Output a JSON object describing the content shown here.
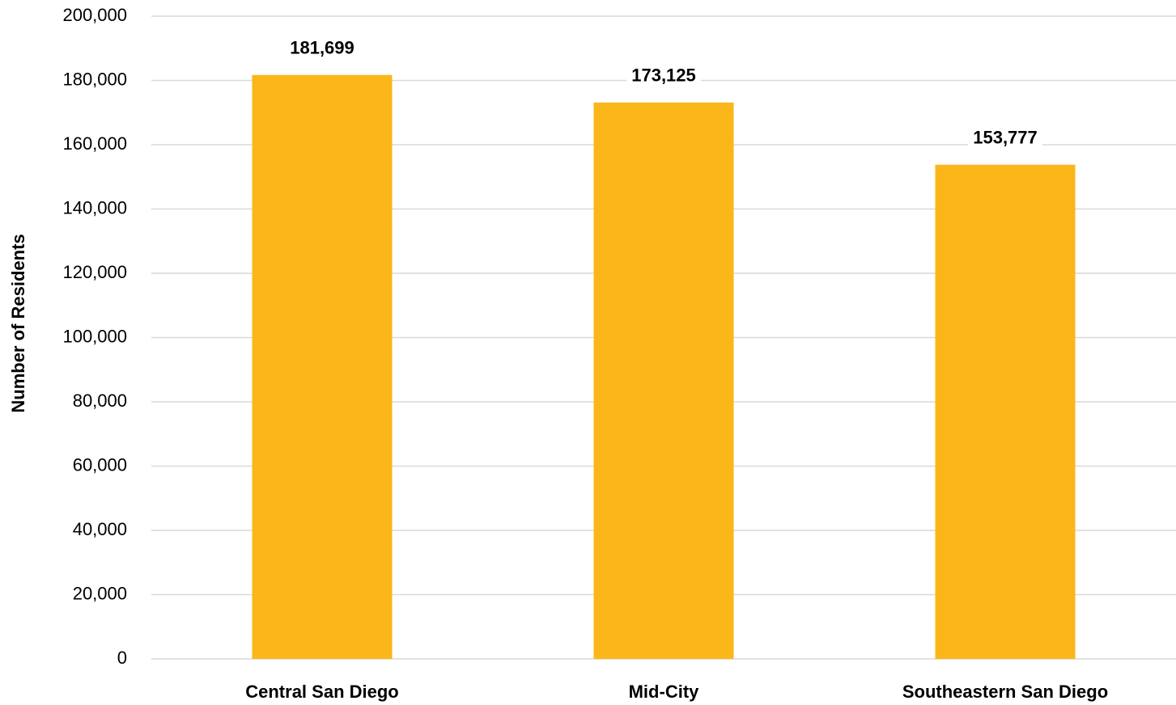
{
  "chart_data": {
    "type": "bar",
    "y_label": "Number of Residents",
    "categories": [
      "Central San Diego",
      "Mid-City",
      "Southeastern San Diego"
    ],
    "values": [
      181699,
      173125,
      153777
    ],
    "value_labels": [
      "181,699",
      "173,125",
      "153,777"
    ],
    "color": "#fbb61a",
    "ylim": [
      0,
      200000
    ],
    "yticks": [
      0,
      {
        "value": 20000,
        "label": "20,000"
      },
      {
        "value": 40000,
        "label": "40,000"
      },
      {
        "value": 60000,
        "label": "60,000"
      },
      {
        "value": 80000,
        "label": "80,000"
      },
      {
        "value": 100000,
        "label": "100,000"
      },
      {
        "value": 120000,
        "label": "120,000"
      },
      {
        "value": 140000,
        "label": "140,000"
      },
      {
        "value": 160000,
        "label": "160,000"
      },
      {
        "value": 180000,
        "label": "180,000"
      },
      {
        "value": 200000,
        "label": "200,000"
      }
    ],
    "grid": true
  }
}
